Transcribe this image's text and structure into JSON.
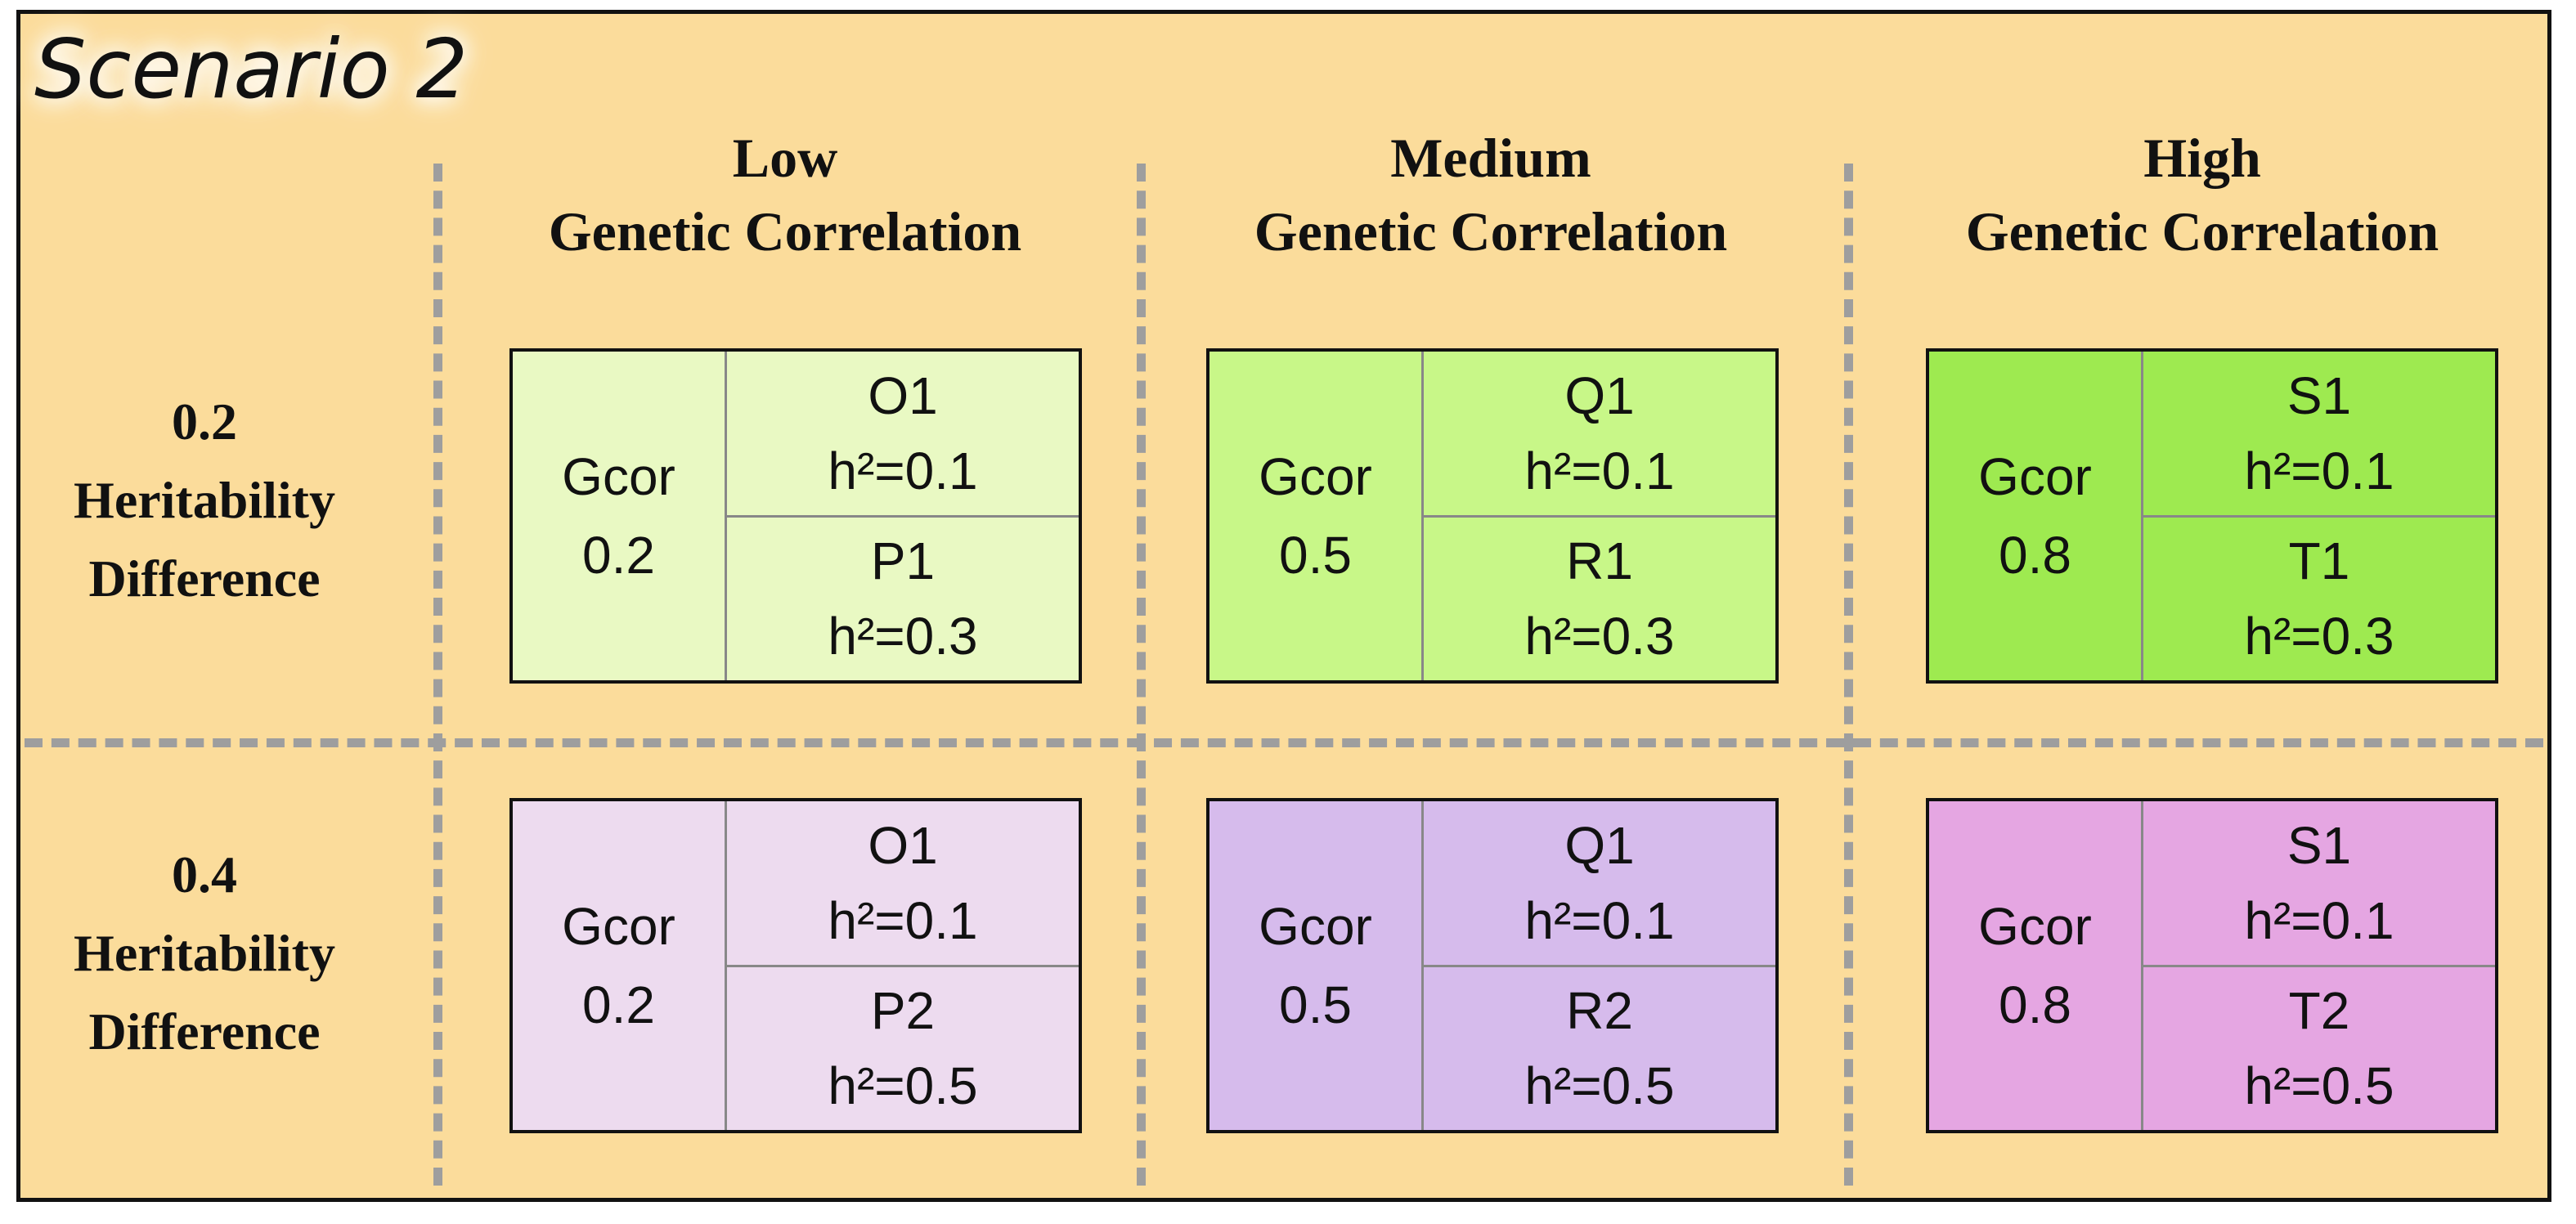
{
  "title": "Scenario 2",
  "columns": [
    {
      "line1": "Low",
      "line2": "Genetic Correlation"
    },
    {
      "line1": "Medium",
      "line2": "Genetic Correlation"
    },
    {
      "line1": "High",
      "line2": "Genetic Correlation"
    }
  ],
  "rows": [
    {
      "line1": "0.2",
      "line2": "Heritability",
      "line3": "Difference"
    },
    {
      "line1": "0.4",
      "line2": "Heritability",
      "line3": "Difference"
    }
  ],
  "cells": [
    [
      {
        "gcor_label": "Gcor",
        "gcor_value": "0.2",
        "top_name": "O1",
        "top_h2": "h²=0.1",
        "bottom_name": "P1",
        "bottom_h2": "h²=0.3",
        "color": "#e9f9c3"
      },
      {
        "gcor_label": "Gcor",
        "gcor_value": "0.5",
        "top_name": "Q1",
        "top_h2": "h²=0.1",
        "bottom_name": "R1",
        "bottom_h2": "h²=0.3",
        "color": "#c8f788"
      },
      {
        "gcor_label": "Gcor",
        "gcor_value": "0.8",
        "top_name": "S1",
        "top_h2": "h²=0.1",
        "bottom_name": "T1",
        "bottom_h2": "h²=0.3",
        "color": "#9eea50"
      }
    ],
    [
      {
        "gcor_label": "Gcor",
        "gcor_value": "0.2",
        "top_name": "O1",
        "top_h2": "h²=0.1",
        "bottom_name": "P2",
        "bottom_h2": "h²=0.5",
        "color": "#eddbef"
      },
      {
        "gcor_label": "Gcor",
        "gcor_value": "0.5",
        "top_name": "Q1",
        "top_h2": "h²=0.1",
        "bottom_name": "R2",
        "bottom_h2": "h²=0.5",
        "color": "#d6bbec"
      },
      {
        "gcor_label": "Gcor",
        "gcor_value": "0.8",
        "top_name": "S1",
        "top_h2": "h²=0.1",
        "bottom_name": "T2",
        "bottom_h2": "h²=0.5",
        "color": "#e5a6e2"
      }
    ]
  ]
}
